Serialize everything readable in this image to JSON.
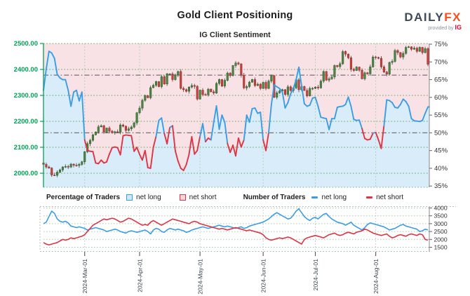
{
  "header": {
    "title": "Gold Client Positioning",
    "subtitle": "IG Client Sentiment",
    "logo": {
      "daily": "DAILY",
      "fx": "FX",
      "provided": "provided by",
      "ig": "IG"
    }
  },
  "legend": {
    "pct_group": "Percentage of Traders",
    "num_group": "Number of Traders",
    "net_long": "net long",
    "net_short": "net short"
  },
  "colors": {
    "net_long_blue": "#3b9de4",
    "net_short_red": "#dc3545",
    "candle_up": "#4e8743",
    "candle_up_edge": "#2f5e2c",
    "candle_down": "#c8423e",
    "candle_down_edge": "#94302d",
    "wick": "#555555",
    "bg_above_line": "#f9e2e5",
    "bg_below_line": "#d9ecf9",
    "price_axis_green": "#00a356",
    "grid_green": "#4aa14e",
    "grid_light_green": "#9cc49c",
    "dashdot_gray": "#737373",
    "axis_dark": "#333333",
    "border_dot": "#b3b3b3",
    "date_label": "#3d4550"
  },
  "chart_data": {
    "type": "candlestick+line",
    "title": "IG Client Sentiment",
    "main_panel": {
      "left_axis_label_values": [
        "2500.00",
        "2400.00",
        "2300.00",
        "2200.00",
        "2100.00",
        "2000.00"
      ],
      "right_axis_label_values": [
        "75%",
        "70%",
        "65%",
        "60%",
        "55%",
        "50%",
        "45%",
        "40%",
        "35%"
      ],
      "price_range": [
        2000,
        2500
      ],
      "pct_range": [
        35,
        75
      ],
      "reference_price_dashdot": 2378,
      "reference_pct_dashdot": 50
    },
    "lower_panel": {
      "right_axis_label_values": [
        "4000",
        "3500",
        "3000",
        "2500",
        "2000",
        "1500"
      ],
      "count_range": [
        1500,
        4000
      ]
    },
    "x_ticks": [
      {
        "label": "2024-Mar-01",
        "month": "03"
      },
      {
        "label": "2024-Apr-01",
        "month": "04"
      },
      {
        "label": "2024-May-01",
        "month": "05"
      },
      {
        "label": "2024-Jun-01",
        "month": "06"
      },
      {
        "label": "2024-Jul-01",
        "month": "07"
      },
      {
        "label": "2024-Aug-01",
        "month": "08"
      }
    ],
    "dates": [
      "02-08",
      "02-09",
      "02-12",
      "02-13",
      "02-14",
      "02-15",
      "02-16",
      "02-20",
      "02-21",
      "02-22",
      "02-23",
      "02-26",
      "02-27",
      "02-28",
      "02-29",
      "03-01",
      "03-04",
      "03-05",
      "03-06",
      "03-07",
      "03-08",
      "03-11",
      "03-12",
      "03-13",
      "03-14",
      "03-15",
      "03-18",
      "03-19",
      "03-20",
      "03-21",
      "03-22",
      "03-25",
      "03-26",
      "03-27",
      "03-28",
      "04-01",
      "04-02",
      "04-03",
      "04-04",
      "04-05",
      "04-08",
      "04-09",
      "04-10",
      "04-11",
      "04-12",
      "04-15",
      "04-16",
      "04-17",
      "04-18",
      "04-19",
      "04-22",
      "04-23",
      "04-24",
      "04-25",
      "04-26",
      "04-29",
      "04-30",
      "05-01",
      "05-02",
      "05-03",
      "05-06",
      "05-07",
      "05-08",
      "05-09",
      "05-10",
      "05-13",
      "05-14",
      "05-15",
      "05-16",
      "05-17",
      "05-20",
      "05-21",
      "05-22",
      "05-23",
      "05-24",
      "05-27",
      "05-28",
      "05-29",
      "05-30",
      "05-31",
      "06-03",
      "06-04",
      "06-05",
      "06-06",
      "06-07",
      "06-10",
      "06-11",
      "06-12",
      "06-13",
      "06-14",
      "06-17",
      "06-18",
      "06-20",
      "06-21",
      "06-24",
      "06-25",
      "06-26",
      "06-27",
      "06-28",
      "07-01",
      "07-02",
      "07-03",
      "07-05",
      "07-08",
      "07-09",
      "07-10",
      "07-11",
      "07-12",
      "07-15",
      "07-16",
      "07-17",
      "07-18",
      "07-19",
      "07-22",
      "07-23",
      "07-24",
      "07-25",
      "07-26",
      "07-29",
      "07-30",
      "07-31",
      "08-01",
      "08-02",
      "08-05",
      "08-06",
      "08-07",
      "08-08",
      "08-09",
      "08-12",
      "08-13",
      "08-14",
      "08-15",
      "08-16",
      "08-19",
      "08-20",
      "08-21",
      "08-22",
      "08-23",
      "08-26",
      "08-27",
      "08-28"
    ],
    "gold_close": [
      2034,
      2024,
      2020,
      1993,
      1992,
      2004,
      2013,
      2024,
      2026,
      2024,
      2035,
      2031,
      2030,
      2034,
      2044,
      2083,
      2114,
      2127,
      2148,
      2159,
      2179,
      2183,
      2158,
      2174,
      2162,
      2156,
      2160,
      2158,
      2186,
      2181,
      2165,
      2171,
      2178,
      2194,
      2233,
      2251,
      2281,
      2299,
      2291,
      2330,
      2339,
      2353,
      2334,
      2372,
      2344,
      2383,
      2383,
      2361,
      2379,
      2392,
      2327,
      2322,
      2316,
      2332,
      2338,
      2335,
      2286,
      2320,
      2303,
      2302,
      2324,
      2314,
      2309,
      2346,
      2361,
      2336,
      2358,
      2386,
      2377,
      2415,
      2425,
      2421,
      2378,
      2329,
      2334,
      2351,
      2361,
      2338,
      2343,
      2327,
      2350,
      2327,
      2355,
      2376,
      2293,
      2310,
      2317,
      2322,
      2304,
      2333,
      2319,
      2329,
      2360,
      2322,
      2334,
      2319,
      2298,
      2327,
      2327,
      2332,
      2329,
      2355,
      2392,
      2359,
      2364,
      2371,
      2415,
      2411,
      2422,
      2469,
      2459,
      2445,
      2401,
      2396,
      2409,
      2397,
      2364,
      2387,
      2383,
      2410,
      2448,
      2446,
      2443,
      2410,
      2390,
      2382,
      2427,
      2431,
      2473,
      2465,
      2448,
      2462,
      2485,
      2487,
      2478,
      2482,
      2470,
      2485,
      2465,
      2480,
      2420
    ],
    "pct_net_long": [
      62,
      68,
      73,
      72.5,
      71,
      66.5,
      65.5,
      65,
      65,
      62,
      57.5,
      61.5,
      62,
      59,
      61.5,
      48,
      45,
      44.8,
      44.7,
      41.5,
      41.3,
      42.3,
      41.5,
      41.8,
      44,
      45.8,
      46,
      45.8,
      43.8,
      49.2,
      49.4,
      49.3,
      49.2,
      44.8,
      45.9,
      43.9,
      42.3,
      45,
      40.2,
      40,
      45.9,
      49,
      53.5,
      54.2,
      49.8,
      46.9,
      51.5,
      52,
      44.9,
      42,
      40,
      39.4,
      41,
      43.9,
      48.9,
      44,
      45,
      49,
      52.6,
      47.5,
      48.5,
      48,
      53,
      57.6,
      51,
      55,
      53,
      47,
      44.5,
      46.5,
      43.5,
      48.5,
      46,
      48,
      55,
      53,
      56.8,
      57,
      55.5,
      55.8,
      48,
      45,
      50,
      58,
      63.5,
      63,
      62.5,
      61.5,
      57,
      58.5,
      61,
      62.5,
      65,
      68.5,
      63.3,
      58.2,
      57.5,
      57.8,
      59.8,
      60,
      57.5,
      54.4,
      54.2,
      54,
      50.9,
      54,
      54,
      57.2,
      57.4,
      57.5,
      58,
      60.1,
      57.5,
      53.8,
      53.5,
      53.6,
      51.2,
      48.4,
      48,
      48.2,
      49.9,
      50.1,
      48,
      45.6,
      52,
      59.3,
      59.1,
      58.5,
      57.2,
      57,
      58,
      59.5,
      58.8,
      57.5,
      54,
      53.4,
      53.3,
      53.2,
      53.5,
      55.5,
      57.3
    ],
    "num_net_long": [
      3000,
      3100,
      3450,
      3800,
      3650,
      3300,
      3150,
      3100,
      3150,
      3050,
      2850,
      2800,
      2750,
      2800,
      2750,
      2700,
      2600,
      2650,
      2700,
      2750,
      2700,
      2650,
      2600,
      2500,
      2550,
      2600,
      2650,
      2600,
      2500,
      2450,
      2400,
      2500,
      2550,
      2500,
      2450,
      2500,
      2550,
      2600,
      2500,
      2350,
      2600,
      2700,
      2650,
      2500,
      2450,
      2600,
      2700,
      2650,
      2600,
      2650,
      2600,
      2550,
      2450,
      2500,
      2600,
      2650,
      2700,
      2750,
      2800,
      2750,
      2700,
      2750,
      2800,
      2850,
      2900,
      2850,
      2800,
      2850,
      2800,
      2750,
      2700,
      2750,
      2800,
      2700,
      2750,
      2850,
      2900,
      2950,
      3000,
      3050,
      3100,
      3200,
      3300,
      3450,
      3600,
      3700,
      3600,
      3500,
      3400,
      3300,
      3350,
      3550,
      3800,
      3950,
      3700,
      3450,
      3300,
      3200,
      3350,
      3400,
      3300,
      3450,
      3600,
      3650,
      3450,
      3300,
      3200,
      3100,
      3050,
      3000,
      2900,
      3000,
      3100,
      2900,
      2800,
      2700,
      2600,
      2750,
      2950,
      3050,
      3000,
      2950,
      2900,
      2850,
      2800,
      2700,
      2600,
      2650,
      2700,
      2800,
      2900,
      2950,
      2850,
      2800,
      2750,
      2700,
      2650,
      2500,
      2550,
      2650,
      2600
    ],
    "num_net_short": [
      1800,
      1700,
      1650,
      1700,
      1750,
      1800,
      1900,
      2000,
      1950,
      2000,
      2100,
      2050,
      2100,
      2150,
      2200,
      2300,
      2500,
      2700,
      2900,
      3000,
      3100,
      3200,
      3300,
      3250,
      3300,
      3350,
      3300,
      3200,
      3100,
      3150,
      3250,
      3350,
      3300,
      3200,
      3100,
      3000,
      2900,
      2950,
      2900,
      3100,
      3200,
      3100,
      3000,
      2900,
      3000,
      3100,
      3200,
      3300,
      3250,
      3200,
      3150,
      3100,
      3050,
      3000,
      3100,
      3150,
      3100,
      3000,
      2950,
      2900,
      2850,
      2800,
      2750,
      2700,
      2650,
      2700,
      2650,
      2600,
      2650,
      2700,
      2750,
      2700,
      2650,
      2600,
      2550,
      2600,
      2550,
      2500,
      2450,
      2400,
      2300,
      2100,
      2000,
      1950,
      2000,
      2050,
      2100,
      2050,
      2100,
      2150,
      2100,
      2000,
      1900,
      1800,
      1700,
      2000,
      2100,
      2150,
      2200,
      2250,
      2200,
      2150,
      2100,
      2200,
      2300,
      2350,
      2400,
      2300,
      2250,
      2300,
      2400,
      2450,
      2400,
      2350,
      2450,
      2500,
      2550,
      2650,
      2600,
      2500,
      2400,
      2350,
      2300,
      2250,
      2300,
      2350,
      2200,
      2100,
      2150,
      2250,
      2300,
      2250,
      2200,
      2300,
      2350,
      2300,
      2250,
      2350,
      2300,
      2000,
      1950
    ]
  }
}
